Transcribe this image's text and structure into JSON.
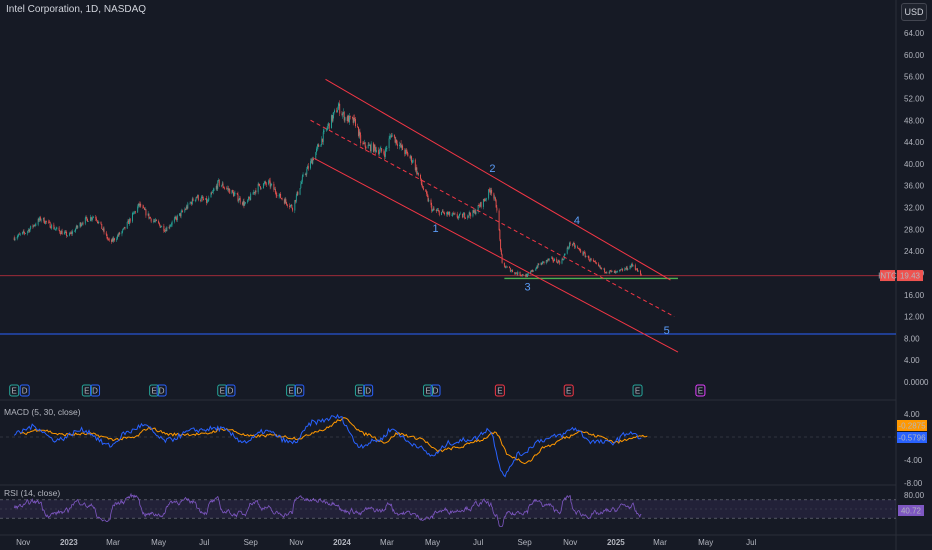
{
  "header": {
    "title": "Intel Corporation, 1D, NASDAQ",
    "currency": "USD"
  },
  "colors": {
    "background": "#161a25",
    "up": "#26a69a",
    "down": "#ef5350",
    "channel": "#f23645",
    "support": "#4caf50",
    "long_line": "#2962ff",
    "macd": "#2962ff",
    "signal": "#ff9800",
    "rsi": "#7e57c2"
  },
  "chart_data": [
    {
      "type": "candlestick",
      "symbol": "INTC",
      "interval": "1D",
      "ylim": [
        0,
        66
      ],
      "y_ticks": [
        "64.00",
        "60.00",
        "56.00",
        "52.00",
        "48.00",
        "44.00",
        "40.00",
        "36.00",
        "32.00",
        "28.00",
        "24.00",
        "20.00",
        "16.00",
        "12.00",
        "8.00",
        "4.00",
        "0.0000"
      ],
      "x_ticks": [
        "Nov",
        "2023",
        "Mar",
        "May",
        "Jul",
        "Sep",
        "Nov",
        "2024",
        "Mar",
        "May",
        "Jul",
        "Sep",
        "Nov",
        "2025",
        "Mar",
        "May",
        "Jul"
      ],
      "price_path": [
        [
          "2022-10-20",
          26.5
        ],
        [
          "2022-11-05",
          27.5
        ],
        [
          "2022-11-25",
          30.0
        ],
        [
          "2022-12-15",
          28.0
        ],
        [
          "2023-01-01",
          26.8
        ],
        [
          "2023-01-20",
          29.5
        ],
        [
          "2023-02-05",
          30.5
        ],
        [
          "2023-02-25",
          25.5
        ],
        [
          "2023-03-15",
          27.8
        ],
        [
          "2023-04-05",
          32.5
        ],
        [
          "2023-04-20",
          30.0
        ],
        [
          "2023-05-10",
          28.0
        ],
        [
          "2023-06-01",
          31.0
        ],
        [
          "2023-06-20",
          34.0
        ],
        [
          "2023-07-05",
          33.0
        ],
        [
          "2023-07-20",
          36.5
        ],
        [
          "2023-08-05",
          35.0
        ],
        [
          "2023-08-25",
          32.5
        ],
        [
          "2023-09-10",
          35.8
        ],
        [
          "2023-09-25",
          36.5
        ],
        [
          "2023-10-10",
          34.0
        ],
        [
          "2023-10-27",
          32.0
        ],
        [
          "2023-11-10",
          37.5
        ],
        [
          "2023-11-25",
          41.5
        ],
        [
          "2023-12-10",
          46.0
        ],
        [
          "2023-12-27",
          50.5
        ],
        [
          "2024-01-05",
          48.5
        ],
        [
          "2024-01-20",
          47.5
        ],
        [
          "2024-01-27",
          43.5
        ],
        [
          "2024-02-10",
          43.0
        ],
        [
          "2024-02-27",
          42.0
        ],
        [
          "2024-03-07",
          45.5
        ],
        [
          "2024-03-20",
          43.0
        ],
        [
          "2024-04-05",
          40.5
        ],
        [
          "2024-04-17",
          36.0
        ],
        [
          "2024-05-01",
          31.5
        ],
        [
          "2024-05-20",
          30.8
        ],
        [
          "2024-06-05",
          30.3
        ],
        [
          "2024-06-25",
          31.0
        ],
        [
          "2024-07-10",
          33.5
        ],
        [
          "2024-07-18",
          35.5
        ],
        [
          "2024-07-26",
          32.0
        ],
        [
          "2024-08-02",
          21.5
        ],
        [
          "2024-08-20",
          20.0
        ],
        [
          "2024-09-05",
          19.5
        ],
        [
          "2024-09-20",
          21.5
        ],
        [
          "2024-10-05",
          22.5
        ],
        [
          "2024-10-20",
          22.0
        ],
        [
          "2024-11-01",
          25.5
        ],
        [
          "2024-11-15",
          24.0
        ],
        [
          "2024-12-01",
          22.0
        ],
        [
          "2024-12-15",
          20.5
        ],
        [
          "2025-01-01",
          20.0
        ],
        [
          "2025-01-15",
          20.8
        ],
        [
          "2025-01-24",
          21.5
        ],
        [
          "2025-02-04",
          19.43
        ]
      ],
      "last_price": {
        "symbol": "INTC",
        "value": "19.43"
      },
      "horizontal_lines": [
        {
          "name": "red-level",
          "y": 19.5
        },
        {
          "name": "support-level",
          "y": 19.0
        },
        {
          "name": "long-term-level",
          "y": 8.8
        }
      ],
      "channel_lines": [
        {
          "name": "channel-upper",
          "from": [
            "2023-12-10",
            55.5
          ],
          "to": [
            "2025-03-15",
            18.7
          ]
        },
        {
          "name": "channel-mid",
          "from": [
            "2023-11-20",
            48.0
          ],
          "to": [
            "2025-03-20",
            12.0
          ]
        },
        {
          "name": "channel-lower",
          "from": [
            "2023-11-25",
            41.0
          ],
          "to": [
            "2025-03-25",
            5.5
          ]
        }
      ],
      "wave_labels": [
        {
          "text": "1",
          "x": "2024-05-05",
          "y": 27.5
        },
        {
          "text": "2",
          "x": "2024-07-20",
          "y": 38.5
        },
        {
          "text": "3",
          "x": "2024-09-05",
          "y": 16.8
        },
        {
          "text": "4",
          "x": "2024-11-10",
          "y": 29.0
        },
        {
          "text": "5",
          "x": "2025-03-10",
          "y": 8.8
        }
      ],
      "event_markers": [
        {
          "text": "E",
          "x": "2022-10-20",
          "kind": "earnings"
        },
        {
          "text": "D",
          "x": "2022-11-03",
          "kind": "dividend"
        },
        {
          "text": "E",
          "x": "2023-01-25",
          "kind": "earnings"
        },
        {
          "text": "D",
          "x": "2023-02-05",
          "kind": "dividend"
        },
        {
          "text": "E",
          "x": "2023-04-25",
          "kind": "earnings"
        },
        {
          "text": "D",
          "x": "2023-05-05",
          "kind": "dividend"
        },
        {
          "text": "E",
          "x": "2023-07-25",
          "kind": "earnings"
        },
        {
          "text": "D",
          "x": "2023-08-05",
          "kind": "dividend"
        },
        {
          "text": "E",
          "x": "2023-10-25",
          "kind": "earnings"
        },
        {
          "text": "D",
          "x": "2023-11-05",
          "kind": "dividend"
        },
        {
          "text": "E",
          "x": "2024-01-25",
          "kind": "earnings"
        },
        {
          "text": "D",
          "x": "2024-02-05",
          "kind": "dividend"
        },
        {
          "text": "E",
          "x": "2024-04-25",
          "kind": "earnings"
        },
        {
          "text": "D",
          "x": "2024-05-05",
          "kind": "dividend"
        },
        {
          "text": "E",
          "x": "2024-07-30",
          "kind": "earnings-miss"
        },
        {
          "text": "E",
          "x": "2024-10-30",
          "kind": "earnings-miss"
        },
        {
          "text": "E",
          "x": "2025-01-30",
          "kind": "earnings"
        },
        {
          "text": "E",
          "x": "2025-04-24",
          "kind": "upcoming"
        }
      ]
    },
    {
      "type": "line",
      "indicator": "MACD",
      "label": "MACD (5, 30, close)",
      "ylim": [
        -9,
        5.5
      ],
      "y_ticks": [
        "4.00",
        "-4.00",
        "-8.00"
      ],
      "series": [
        {
          "name": "MACD",
          "color": "#2962ff"
        },
        {
          "name": "Signal",
          "color": "#ff9800"
        }
      ],
      "values": [
        [
          "2022-10-20",
          0.5
        ],
        [
          "2022-11-15",
          1.8
        ],
        [
          "2022-12-15",
          -0.5
        ],
        [
          "2023-01-20",
          1.2
        ],
        [
          "2023-02-25",
          -1.5
        ],
        [
          "2023-03-20",
          0.8
        ],
        [
          "2023-04-10",
          2.0
        ],
        [
          "2023-05-10",
          -0.6
        ],
        [
          "2023-06-20",
          1.2
        ],
        [
          "2023-07-20",
          1.5
        ],
        [
          "2023-08-25",
          -0.8
        ],
        [
          "2023-09-20",
          1.0
        ],
        [
          "2023-10-27",
          -1.0
        ],
        [
          "2023-11-25",
          2.6
        ],
        [
          "2023-12-27",
          3.5
        ],
        [
          "2024-01-25",
          -1.5
        ],
        [
          "2024-02-20",
          -0.5
        ],
        [
          "2024-03-07",
          1.3
        ],
        [
          "2024-04-05",
          -1.2
        ],
        [
          "2024-05-01",
          -3.2
        ],
        [
          "2024-05-25",
          -1.0
        ],
        [
          "2024-06-25",
          -0.3
        ],
        [
          "2024-07-15",
          1.3
        ],
        [
          "2024-08-05",
          -6.5
        ],
        [
          "2024-08-25",
          -3.0
        ],
        [
          "2024-09-25",
          -0.5
        ],
        [
          "2024-10-20",
          0.3
        ],
        [
          "2024-11-05",
          1.5
        ],
        [
          "2024-12-01",
          -0.8
        ],
        [
          "2024-12-25",
          -1.0
        ],
        [
          "2025-01-20",
          0.8
        ],
        [
          "2025-02-04",
          -0.2875
        ]
      ],
      "signal_lag": "1 point",
      "last_values": [
        {
          "name": "MACD",
          "value": "-0.2875"
        },
        {
          "name": "Signal",
          "value": "-0.5796"
        }
      ]
    },
    {
      "type": "line",
      "indicator": "RSI",
      "label": "RSI (14, close)",
      "ylim": [
        0,
        100
      ],
      "y_ticks": [
        "80.00"
      ],
      "bands": [
        70,
        30
      ],
      "last_value": "40.72"
    }
  ]
}
